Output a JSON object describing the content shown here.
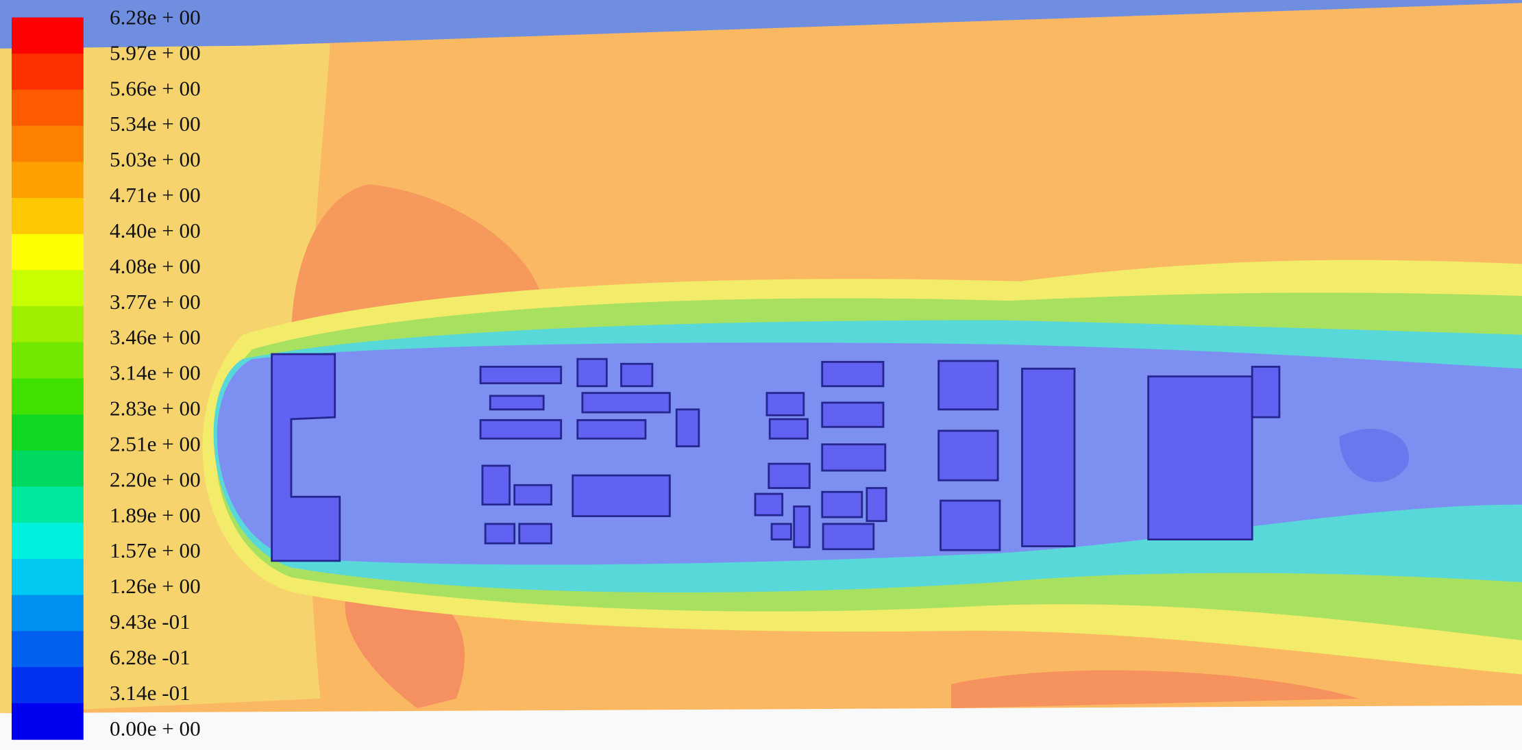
{
  "legend": {
    "labels": [
      "6.28e + 00",
      "5.97e + 00",
      "5.66e + 00",
      "5.34e + 00",
      "5.03e + 00",
      "4.71e + 00",
      "4.40e + 00",
      "4.08e + 00",
      "3.77e + 00",
      "3.46e + 00",
      "3.14e + 00",
      "2.83e + 00",
      "2.51e + 00",
      "2.20e + 00",
      "1.89e + 00",
      "1.57e + 00",
      "1.26e + 00",
      "9.43e -01",
      "6.28e -01",
      "3.14e -01",
      "0.00e + 00"
    ],
    "colors": [
      "#fe0000",
      "#fe3000",
      "#fe5a00",
      "#fe8000",
      "#fea000",
      "#fec800",
      "#feff00",
      "#c8ff00",
      "#9cf000",
      "#70e800",
      "#40e000",
      "#10d820",
      "#00d860",
      "#00e8a0",
      "#00f0e0",
      "#00c8f0",
      "#0090f0",
      "#0060f0",
      "#0030f0",
      "#0000f0"
    ]
  }
}
